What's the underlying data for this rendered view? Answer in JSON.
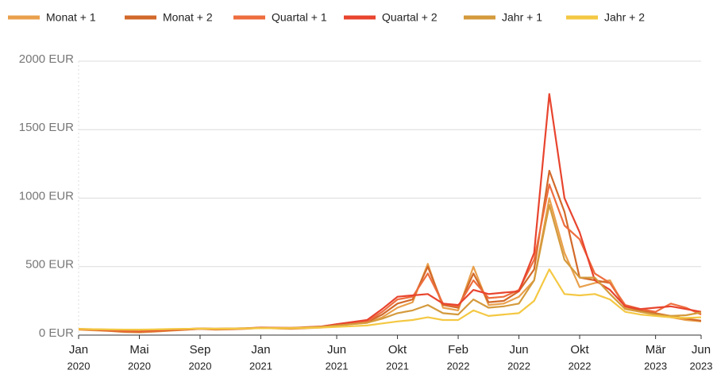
{
  "chart_data": {
    "type": "line",
    "x": [
      "2020-01",
      "2020-02",
      "2020-03",
      "2020-04",
      "2020-05",
      "2020-06",
      "2020-07",
      "2020-08",
      "2020-09",
      "2020-10",
      "2020-11",
      "2020-12",
      "2021-01",
      "2021-02",
      "2021-03",
      "2021-04",
      "2021-05",
      "2021-06",
      "2021-07",
      "2021-08",
      "2021-09",
      "2021-10",
      "2021-11",
      "2021-12",
      "2022-01",
      "2022-02",
      "2022-03",
      "2022-04",
      "2022-05",
      "2022-06",
      "2022-07",
      "2022-08",
      "2022-09",
      "2022-10",
      "2022-11",
      "2022-12",
      "2023-01",
      "2023-02",
      "2023-03",
      "2023-04",
      "2023-05",
      "2023-06"
    ],
    "series": [
      {
        "name": "Monat + 1",
        "color": "#e9a04c",
        "values": [
          40,
          35,
          30,
          22,
          20,
          25,
          32,
          38,
          45,
          40,
          42,
          45,
          52,
          48,
          45,
          50,
          55,
          70,
          80,
          90,
          130,
          200,
          240,
          520,
          200,
          180,
          500,
          220,
          230,
          280,
          400,
          1000,
          600,
          350,
          380,
          400,
          200,
          170,
          150,
          130,
          110,
          100
        ]
      },
      {
        "name": "Monat + 2",
        "color": "#d2692a",
        "values": [
          42,
          38,
          32,
          25,
          24,
          28,
          35,
          40,
          46,
          42,
          44,
          47,
          53,
          50,
          47,
          52,
          58,
          75,
          85,
          95,
          150,
          230,
          260,
          500,
          220,
          200,
          450,
          240,
          250,
          320,
          480,
          1200,
          900,
          420,
          400,
          380,
          210,
          180,
          160,
          140,
          120,
          105
        ]
      },
      {
        "name": "Quartal + 1",
        "color": "#ee6d3e",
        "values": [
          43,
          40,
          35,
          30,
          28,
          32,
          38,
          42,
          47,
          44,
          46,
          48,
          54,
          52,
          50,
          55,
          60,
          78,
          90,
          100,
          170,
          260,
          280,
          450,
          230,
          210,
          400,
          270,
          280,
          330,
          550,
          1100,
          800,
          700,
          450,
          380,
          220,
          190,
          170,
          230,
          200,
          150
        ]
      },
      {
        "name": "Quartal + 2",
        "color": "#e8442e",
        "values": [
          44,
          42,
          38,
          35,
          33,
          36,
          40,
          44,
          48,
          46,
          48,
          50,
          55,
          54,
          53,
          58,
          63,
          80,
          95,
          110,
          190,
          280,
          290,
          300,
          230,
          220,
          330,
          300,
          310,
          320,
          600,
          1760,
          1000,
          750,
          400,
          330,
          210,
          190,
          200,
          210,
          190,
          170
        ]
      },
      {
        "name": "Jahr + 1",
        "color": "#d49a3c",
        "values": [
          45,
          43,
          40,
          38,
          37,
          40,
          43,
          45,
          48,
          47,
          48,
          50,
          53,
          52,
          52,
          56,
          60,
          70,
          80,
          90,
          120,
          160,
          180,
          220,
          160,
          150,
          260,
          200,
          210,
          230,
          400,
          950,
          550,
          420,
          420,
          300,
          190,
          170,
          150,
          140,
          145,
          165
        ]
      },
      {
        "name": "Jahr + 2",
        "color": "#f4c843",
        "values": [
          44,
          43,
          42,
          40,
          40,
          42,
          44,
          45,
          47,
          46,
          47,
          48,
          50,
          50,
          50,
          52,
          55,
          60,
          65,
          70,
          85,
          100,
          110,
          130,
          110,
          110,
          180,
          140,
          150,
          160,
          250,
          480,
          300,
          290,
          300,
          260,
          170,
          150,
          140,
          130,
          125,
          130
        ]
      }
    ],
    "ylim": [
      0,
      2000
    ],
    "yticks": [
      {
        "value": 0,
        "label": "0 EUR"
      },
      {
        "value": 500,
        "label": "500 EUR"
      },
      {
        "value": 1000,
        "label": "1000 EUR"
      },
      {
        "value": 1500,
        "label": "1500 EUR"
      },
      {
        "value": 2000,
        "label": "2000 EUR"
      }
    ],
    "xticks": [
      {
        "value": "2020-01",
        "label": [
          "Jan",
          "2020"
        ]
      },
      {
        "value": "2020-05",
        "label": [
          "Mai",
          "2020"
        ]
      },
      {
        "value": "2020-09",
        "label": [
          "Sep",
          "2020"
        ]
      },
      {
        "value": "2021-01",
        "label": [
          "Jan",
          "2021"
        ]
      },
      {
        "value": "2021-06",
        "label": [
          "Jun",
          "2021"
        ]
      },
      {
        "value": "2021-10",
        "label": [
          "Okt",
          "2021"
        ]
      },
      {
        "value": "2022-02",
        "label": [
          "Feb",
          "2022"
        ]
      },
      {
        "value": "2022-06",
        "label": [
          "Jun",
          "2022"
        ]
      },
      {
        "value": "2022-10",
        "label": [
          "Okt",
          "2022"
        ]
      },
      {
        "value": "2023-03",
        "label": [
          "Mär",
          "2023"
        ]
      },
      {
        "value": "2023-06",
        "label": [
          "Jun",
          "2023"
        ]
      }
    ],
    "grid": true,
    "legend": "top"
  }
}
